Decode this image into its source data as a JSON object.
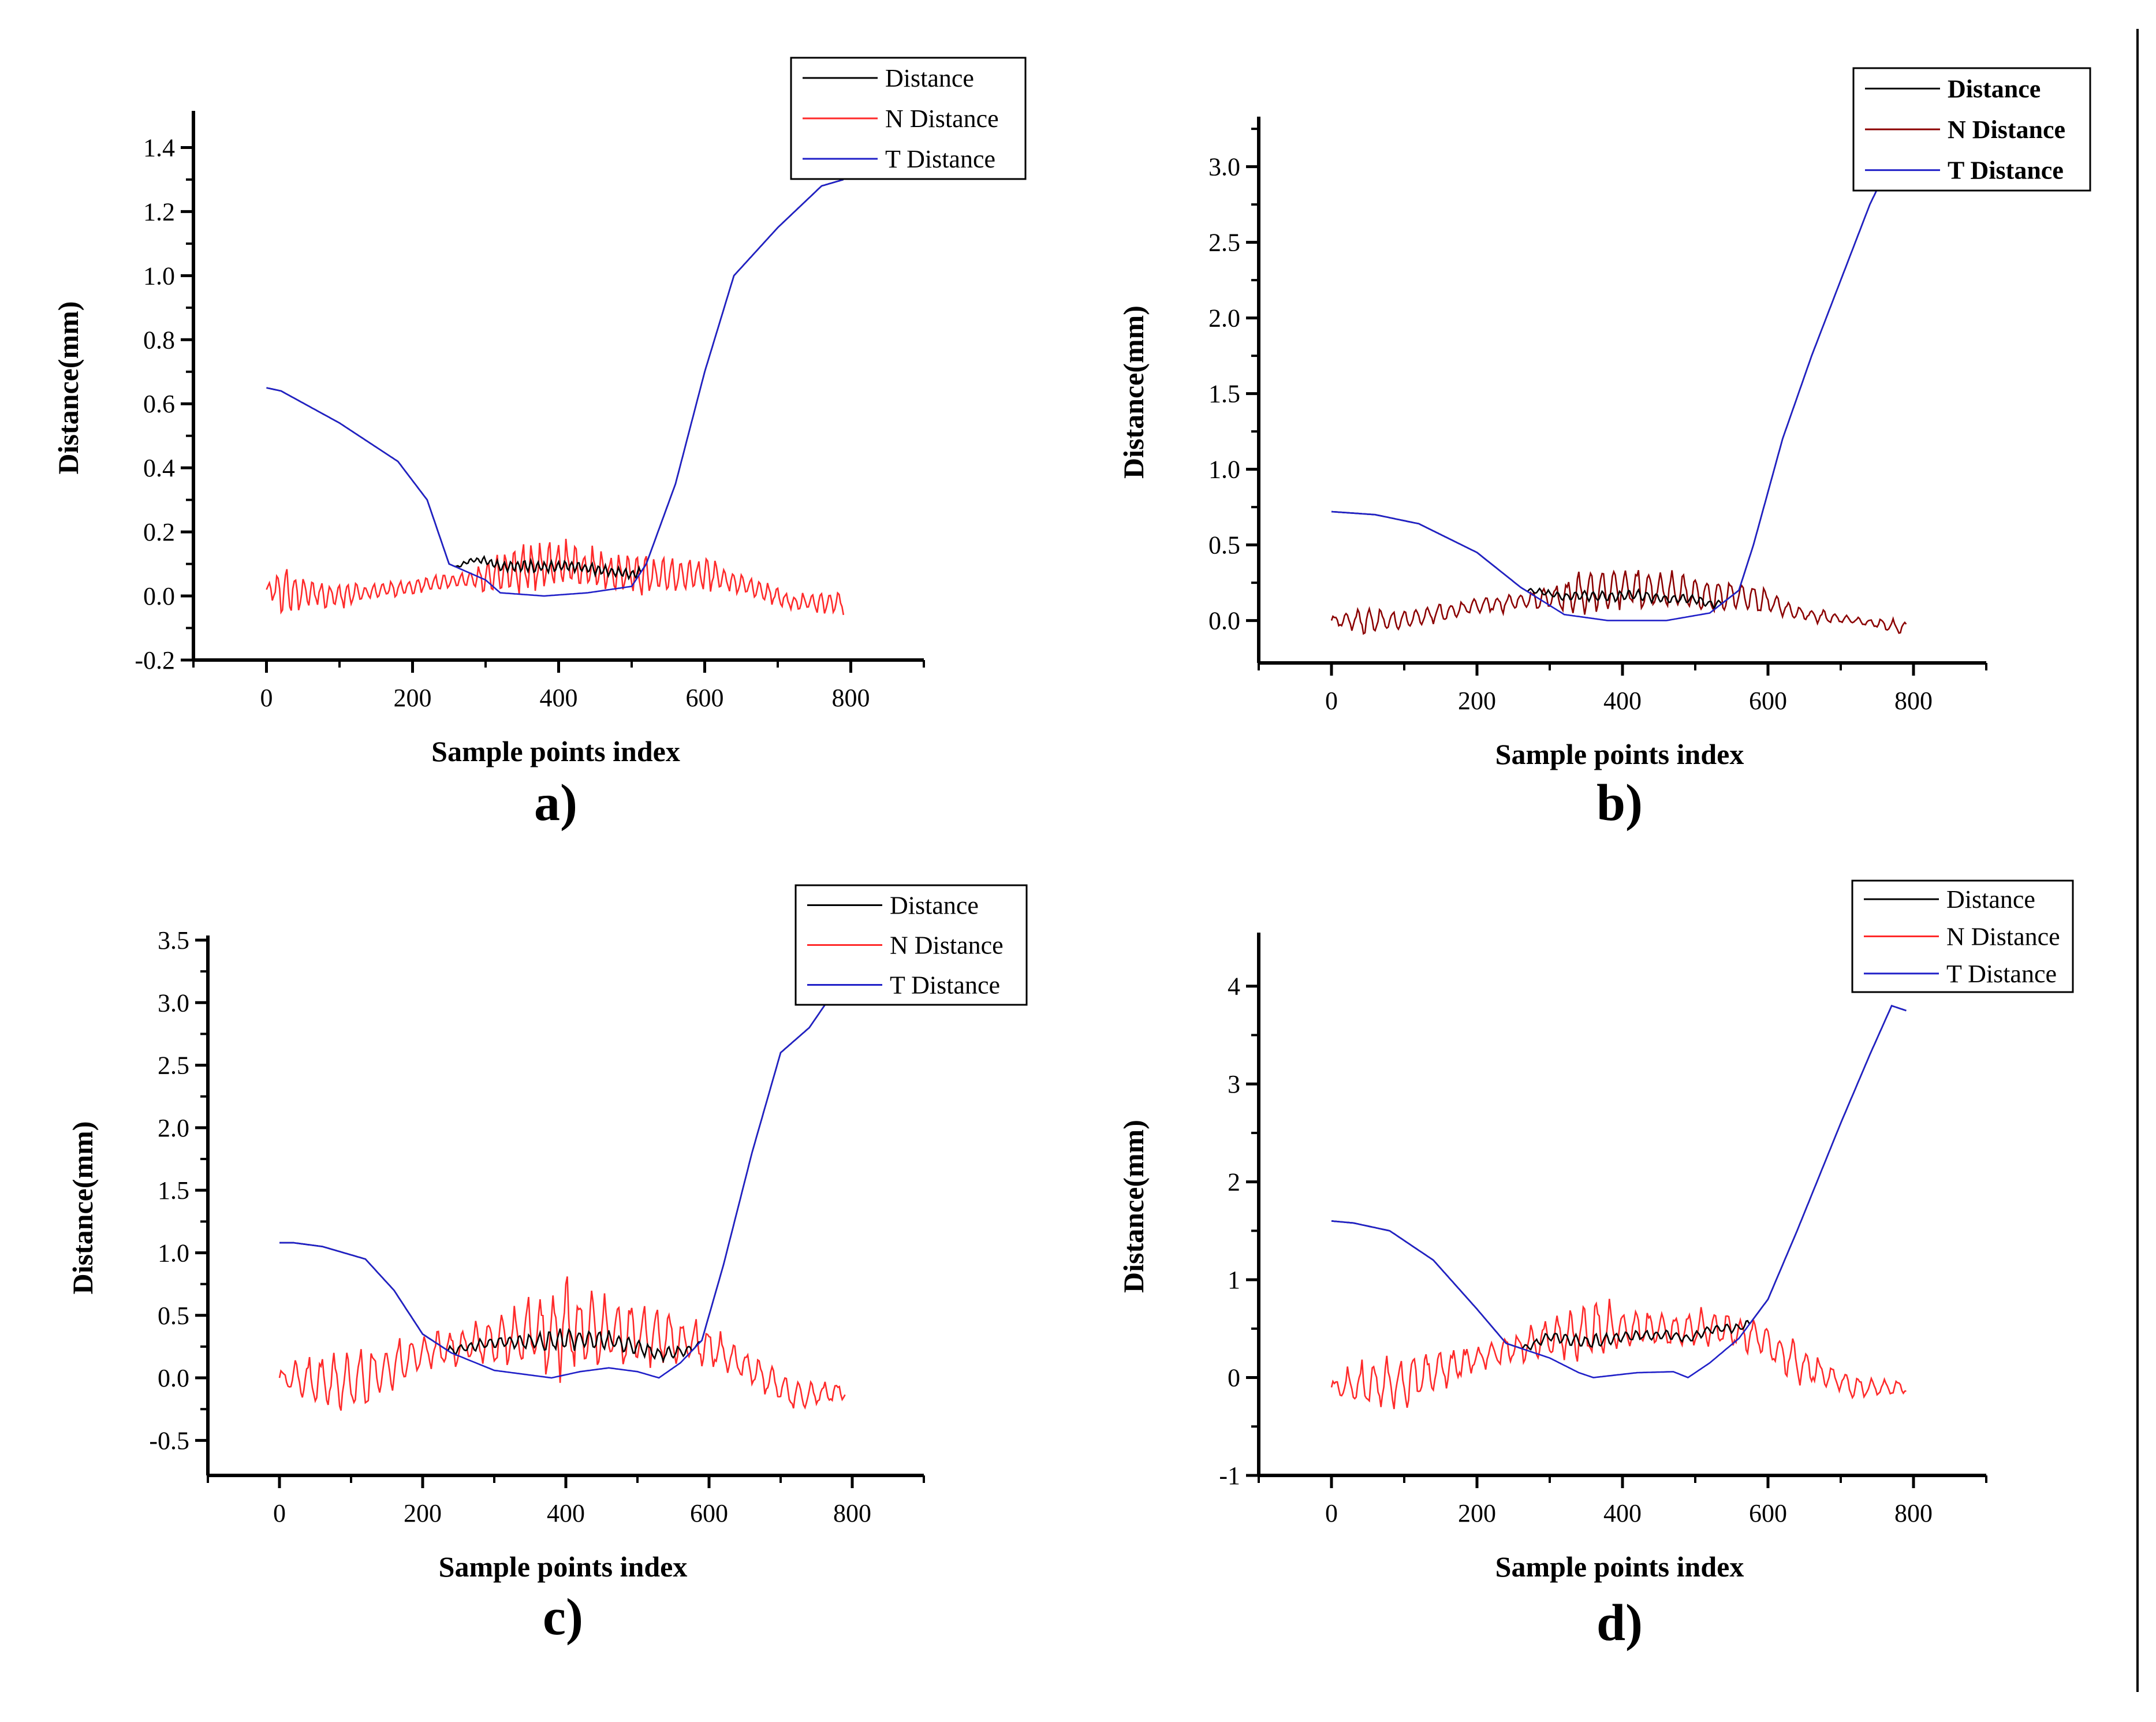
{
  "figure": {
    "panels": [
      "a",
      "b",
      "c",
      "d"
    ],
    "colors": {
      "distance": "#000000",
      "n_distance": "#ff2a2a",
      "n_distance_b": "#8b0000",
      "t_distance": "#2020c8",
      "axis": "#000000"
    }
  },
  "chart_data": [
    {
      "id": "a",
      "type": "line",
      "panel_label": "a)",
      "xlabel": "Sample points index",
      "ylabel": "Distance(mm)",
      "xlim": [
        -100,
        900
      ],
      "ylim": [
        -0.2,
        1.5
      ],
      "xticks": [
        0,
        200,
        400,
        600,
        800
      ],
      "xtick_labels": [
        "0",
        "200",
        "400",
        "600",
        "800"
      ],
      "yticks": [
        -0.2,
        0.0,
        0.2,
        0.4,
        0.6,
        0.8,
        1.0,
        1.2,
        1.4
      ],
      "ytick_labels": [
        "-0.2",
        "0.0",
        "0.2",
        "0.4",
        "0.6",
        "0.8",
        "1.0",
        "1.2",
        "1.4"
      ],
      "legend": {
        "position": "top-right",
        "bold": false,
        "entries": [
          "Distance",
          "N Distance",
          "T Distance"
        ]
      },
      "t_curve": [
        [
          0,
          0.65
        ],
        [
          20,
          0.64
        ],
        [
          100,
          0.54
        ],
        [
          180,
          0.42
        ],
        [
          220,
          0.3
        ],
        [
          250,
          0.1
        ],
        [
          300,
          0.05
        ],
        [
          320,
          0.01
        ],
        [
          380,
          0.0
        ],
        [
          440,
          0.01
        ],
        [
          500,
          0.03
        ],
        [
          520,
          0.1
        ],
        [
          560,
          0.35
        ],
        [
          600,
          0.7
        ],
        [
          640,
          1.0
        ],
        [
          700,
          1.15
        ],
        [
          760,
          1.28
        ],
        [
          790,
          1.3
        ]
      ],
      "n_base": [
        [
          0,
          0.02
        ],
        [
          20,
          0.02
        ],
        [
          100,
          0.0
        ],
        [
          200,
          0.03
        ],
        [
          300,
          0.06
        ],
        [
          400,
          0.1
        ],
        [
          480,
          0.07
        ],
        [
          560,
          0.06
        ],
        [
          600,
          0.07
        ],
        [
          660,
          0.03
        ],
        [
          720,
          -0.02
        ],
        [
          790,
          -0.02
        ]
      ],
      "n_amp": [
        [
          0,
          0.01
        ],
        [
          20,
          0.06
        ],
        [
          60,
          0.04
        ],
        [
          150,
          0.02
        ],
        [
          250,
          0.02
        ],
        [
          300,
          0.04
        ],
        [
          350,
          0.06
        ],
        [
          420,
          0.06
        ],
        [
          480,
          0.05
        ],
        [
          560,
          0.05
        ],
        [
          640,
          0.03
        ],
        [
          720,
          0.02
        ],
        [
          790,
          0.03
        ]
      ],
      "d_bump": [
        [
          240,
          0
        ],
        [
          280,
          0.07
        ],
        [
          300,
          0.08
        ],
        [
          340,
          0.09
        ],
        [
          420,
          0.09
        ],
        [
          500,
          0.05
        ],
        [
          530,
          0.0
        ]
      ],
      "n_period": 12,
      "seed": 3
    },
    {
      "id": "b",
      "type": "line",
      "panel_label": "b)",
      "xlabel": "Sample points index",
      "ylabel": "Distance(mm)",
      "xlim": [
        -100,
        900
      ],
      "ylim": [
        -0.28,
        3.3
      ],
      "xticks": [
        0,
        200,
        400,
        600,
        800
      ],
      "xtick_labels": [
        "0",
        "200",
        "400",
        "600",
        "800"
      ],
      "yticks": [
        0.0,
        0.5,
        1.0,
        1.5,
        2.0,
        2.5,
        3.0
      ],
      "ytick_labels": [
        "0.0",
        "0.5",
        "1.0",
        "1.5",
        "2.0",
        "2.5",
        "3.0"
      ],
      "legend": {
        "position": "top-right",
        "bold": true,
        "entries": [
          "Distance",
          "N Distance",
          "T Distance"
        ]
      },
      "t_curve": [
        [
          0,
          0.72
        ],
        [
          60,
          0.7
        ],
        [
          120,
          0.64
        ],
        [
          200,
          0.45
        ],
        [
          260,
          0.22
        ],
        [
          320,
          0.04
        ],
        [
          380,
          0.0
        ],
        [
          460,
          0.0
        ],
        [
          520,
          0.05
        ],
        [
          560,
          0.2
        ],
        [
          580,
          0.5
        ],
        [
          620,
          1.2
        ],
        [
          660,
          1.75
        ],
        [
          700,
          2.25
        ],
        [
          740,
          2.75
        ],
        [
          760,
          2.95
        ],
        [
          770,
          3.05
        ]
      ],
      "n_base": [
        [
          0,
          0.0
        ],
        [
          100,
          0.0
        ],
        [
          200,
          0.1
        ],
        [
          300,
          0.15
        ],
        [
          400,
          0.22
        ],
        [
          500,
          0.18
        ],
        [
          580,
          0.16
        ],
        [
          640,
          0.05
        ],
        [
          720,
          0.0
        ],
        [
          790,
          -0.05
        ]
      ],
      "n_amp": [
        [
          0,
          0.03
        ],
        [
          40,
          0.07
        ],
        [
          120,
          0.05
        ],
        [
          200,
          0.04
        ],
        [
          280,
          0.06
        ],
        [
          340,
          0.1
        ],
        [
          420,
          0.12
        ],
        [
          500,
          0.1
        ],
        [
          580,
          0.08
        ],
        [
          640,
          0.04
        ],
        [
          720,
          0.02
        ],
        [
          790,
          0.04
        ]
      ],
      "d_bump": [
        [
          220,
          0
        ],
        [
          280,
          0.1
        ],
        [
          340,
          0.15
        ],
        [
          420,
          0.17
        ],
        [
          500,
          0.12
        ],
        [
          560,
          0.0
        ]
      ],
      "n_period": 16,
      "seed": 7
    },
    {
      "id": "c",
      "type": "line",
      "panel_label": "c)",
      "xlabel": "Sample points index",
      "ylabel": "Distance(mm)",
      "xlim": [
        -100,
        900
      ],
      "ylim": [
        -0.78,
        3.5
      ],
      "xticks": [
        0,
        200,
        400,
        600,
        800
      ],
      "xtick_labels": [
        "0",
        "200",
        "400",
        "600",
        "800"
      ],
      "yticks": [
        -0.5,
        0.0,
        0.5,
        1.0,
        1.5,
        2.0,
        2.5,
        3.0,
        3.5
      ],
      "ytick_labels": [
        "-0.5",
        "0.0",
        "0.5",
        "1.0",
        "1.5",
        "2.0",
        "2.5",
        "3.0",
        "3.5"
      ],
      "legend": {
        "position": "top-right",
        "bold": false,
        "entries": [
          "Distance",
          "N Distance",
          "T Distance"
        ]
      },
      "t_curve": [
        [
          0,
          1.08
        ],
        [
          20,
          1.08
        ],
        [
          60,
          1.05
        ],
        [
          120,
          0.95
        ],
        [
          160,
          0.7
        ],
        [
          200,
          0.35
        ],
        [
          240,
          0.2
        ],
        [
          300,
          0.06
        ],
        [
          340,
          0.03
        ],
        [
          380,
          0.0
        ],
        [
          420,
          0.05
        ],
        [
          460,
          0.08
        ],
        [
          500,
          0.05
        ],
        [
          530,
          0.0
        ],
        [
          560,
          0.12
        ],
        [
          590,
          0.3
        ],
        [
          620,
          0.9
        ],
        [
          660,
          1.8
        ],
        [
          700,
          2.6
        ],
        [
          740,
          2.8
        ],
        [
          770,
          3.05
        ]
      ],
      "n_base": [
        [
          0,
          0.0
        ],
        [
          100,
          -0.05
        ],
        [
          200,
          0.2
        ],
        [
          300,
          0.3
        ],
        [
          400,
          0.4
        ],
        [
          500,
          0.35
        ],
        [
          600,
          0.25
        ],
        [
          650,
          0.1
        ],
        [
          720,
          -0.15
        ],
        [
          790,
          -0.1
        ]
      ],
      "n_amp": [
        [
          0,
          0.05
        ],
        [
          40,
          0.15
        ],
        [
          120,
          0.2
        ],
        [
          200,
          0.1
        ],
        [
          300,
          0.15
        ],
        [
          400,
          0.3
        ],
        [
          500,
          0.2
        ],
        [
          580,
          0.15
        ],
        [
          640,
          0.1
        ],
        [
          720,
          0.1
        ],
        [
          790,
          0.05
        ]
      ],
      "d_bump": [
        [
          200,
          0
        ],
        [
          240,
          0.1
        ],
        [
          300,
          0.25
        ],
        [
          400,
          0.3
        ],
        [
          520,
          0.2
        ],
        [
          580,
          0.1
        ],
        [
          620,
          0.0
        ]
      ],
      "n_period": 18,
      "seed": 11
    },
    {
      "id": "d",
      "type": "line",
      "panel_label": "d)",
      "xlabel": "Sample points index",
      "ylabel": "Distance(mm)",
      "xlim": [
        -100,
        900
      ],
      "ylim": [
        -1.0,
        4.5
      ],
      "xticks": [
        0,
        200,
        400,
        600,
        800
      ],
      "xtick_labels": [
        "0",
        "200",
        "400",
        "600",
        "800"
      ],
      "yticks": [
        -1,
        0,
        1,
        2,
        3,
        4
      ],
      "ytick_labels": [
        "-1",
        "0",
        "1",
        "2",
        "3",
        "4"
      ],
      "legend": {
        "position": "top-right",
        "bold": false,
        "entries": [
          "Distance",
          "N Distance",
          "T Distance"
        ]
      },
      "t_curve": [
        [
          0,
          1.6
        ],
        [
          30,
          1.58
        ],
        [
          80,
          1.5
        ],
        [
          140,
          1.2
        ],
        [
          200,
          0.7
        ],
        [
          240,
          0.35
        ],
        [
          300,
          0.2
        ],
        [
          340,
          0.05
        ],
        [
          360,
          0.0
        ],
        [
          420,
          0.05
        ],
        [
          470,
          0.06
        ],
        [
          490,
          0.0
        ],
        [
          520,
          0.15
        ],
        [
          560,
          0.4
        ],
        [
          600,
          0.8
        ],
        [
          640,
          1.5
        ],
        [
          700,
          2.6
        ],
        [
          740,
          3.3
        ],
        [
          770,
          3.8
        ],
        [
          790,
          3.75
        ]
      ],
      "n_base": [
        [
          0,
          -0.1
        ],
        [
          100,
          -0.05
        ],
        [
          200,
          0.2
        ],
        [
          300,
          0.4
        ],
        [
          400,
          0.5
        ],
        [
          500,
          0.5
        ],
        [
          580,
          0.45
        ],
        [
          640,
          0.15
        ],
        [
          720,
          -0.1
        ],
        [
          790,
          -0.1
        ]
      ],
      "n_amp": [
        [
          0,
          0.05
        ],
        [
          40,
          0.2
        ],
        [
          120,
          0.2
        ],
        [
          200,
          0.1
        ],
        [
          300,
          0.15
        ],
        [
          360,
          0.25
        ],
        [
          440,
          0.15
        ],
        [
          520,
          0.15
        ],
        [
          580,
          0.15
        ],
        [
          640,
          0.15
        ],
        [
          720,
          0.1
        ],
        [
          790,
          0.05
        ]
      ],
      "d_bump": [
        [
          220,
          0
        ],
        [
          260,
          0.1
        ],
        [
          300,
          0.3
        ],
        [
          400,
          0.4
        ],
        [
          520,
          0.4
        ],
        [
          580,
          0.2
        ],
        [
          620,
          0.0
        ]
      ],
      "n_period": 18,
      "seed": 17
    }
  ]
}
